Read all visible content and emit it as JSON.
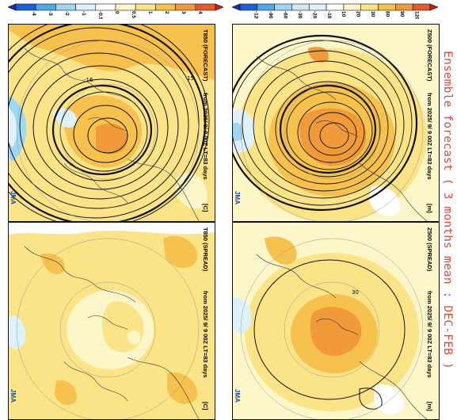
{
  "title": "Ensemble forecast ( 3 months mean : DEC-FEB )",
  "colors": {
    "title": "#e0483a",
    "positive": [
      "#fdf6c8",
      "#fbe487",
      "#f7c14d",
      "#f09a3a",
      "#e55a2c",
      "#c81e1e"
    ],
    "negative": [
      "#ddf2fb",
      "#9fd7f2",
      "#4ea9e8",
      "#1f5fd6",
      "#1c2aa8"
    ]
  },
  "colorbars": [
    {
      "id": "t850",
      "labels": [
        "-4",
        "-3",
        "-2",
        "-1",
        "-0.5",
        "0",
        "0.5",
        "1",
        "2",
        "3",
        "4"
      ],
      "fills": [
        "#1c2aa8",
        "#1f5fd6",
        "#4ea9e8",
        "#9fd7f2",
        "#ddf2fb",
        "#ffffff",
        "#fdf6c8",
        "#fbe487",
        "#f7c14d",
        "#f09a3a",
        "#e55a2c",
        "#c81e1e"
      ]
    },
    {
      "id": "z500",
      "labels": [
        "-120",
        "-90",
        "-60",
        "-30",
        "-20",
        "-10",
        "10",
        "20",
        "30",
        "60",
        "90",
        "120"
      ],
      "fills": [
        "#1c2aa8",
        "#1f5fd6",
        "#4ea9e8",
        "#9fd7f2",
        "#cfeaf6",
        "#ddf2fb",
        "#ffffff",
        "#fdf6c8",
        "#fbe487",
        "#f7c14d",
        "#f09a3a",
        "#e55a2c",
        "#c81e1e"
      ]
    }
  ],
  "panels": [
    {
      "id": "t850-forecast",
      "header": "T850 (FORECAST)",
      "info": "from   2025/ 9/ 9 00Z LT=83  days",
      "unit": "[C]",
      "logo": "JMA"
    },
    {
      "id": "z500-forecast",
      "header": "Z500 (FORECAST)",
      "info": "from   2025/ 9/ 9 00Z LT=83  days",
      "unit": "[m]",
      "logo": "JMA"
    },
    {
      "id": "t850-spread",
      "header": "T850 (SPREAD)",
      "info": "from   2025/ 9/ 9 00Z LT=83  days",
      "unit": "[C]",
      "logo": "JMA"
    },
    {
      "id": "z500-spread",
      "header": "Z500 (SPREAD)",
      "info": "from   2025/ 9/ 9 00Z LT=83  days",
      "unit": "[m]",
      "logo": "JMA"
    }
  ],
  "contour_labels": {
    "t850-forecast": [
      "15",
      "-16"
    ],
    "z500-spread": [
      "30"
    ]
  }
}
